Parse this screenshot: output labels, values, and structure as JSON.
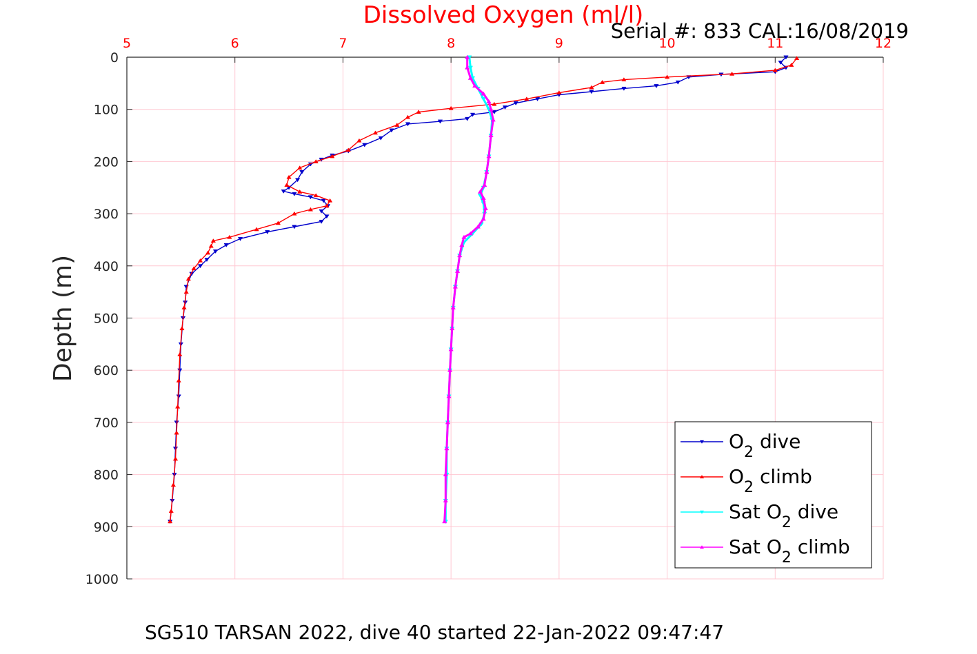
{
  "chart_data": {
    "type": "line",
    "title": "Dissolved Oxygen (ml/l)",
    "subtitle": "Serial #: 833  CAL:16/08/2019",
    "footer": "SG510 TARSAN 2022, dive 40 started 22-Jan-2022 09:47:47",
    "xlabel": "",
    "ylabel": "Depth (m)",
    "xlim": [
      5,
      12
    ],
    "ylim": [
      0,
      1000
    ],
    "y_reversed": true,
    "x_axis_position": "top",
    "xticks": [
      "5",
      "6",
      "7",
      "8",
      "9",
      "10",
      "11",
      "12"
    ],
    "yticks": [
      "0",
      "100",
      "200",
      "300",
      "400",
      "500",
      "600",
      "700",
      "800",
      "900",
      "1000"
    ],
    "grid": true,
    "legend_position": "bottom-right",
    "colors": {
      "title": "#ff0000",
      "xticks": "#ff0000",
      "grid": "#ffc8d2",
      "axis": "#262626"
    },
    "series": [
      {
        "name": "O2 dive",
        "color": "#0000cc",
        "marker": "triangle-down",
        "points": [
          [
            11.1,
            0
          ],
          [
            11.05,
            10
          ],
          [
            11.1,
            20
          ],
          [
            11.0,
            28
          ],
          [
            10.5,
            33
          ],
          [
            10.2,
            38
          ],
          [
            10.1,
            48
          ],
          [
            9.9,
            55
          ],
          [
            9.6,
            60
          ],
          [
            9.3,
            66
          ],
          [
            9.0,
            72
          ],
          [
            8.8,
            80
          ],
          [
            8.6,
            88
          ],
          [
            8.5,
            96
          ],
          [
            8.4,
            105
          ],
          [
            8.2,
            110
          ],
          [
            8.15,
            118
          ],
          [
            7.9,
            123
          ],
          [
            7.6,
            128
          ],
          [
            7.45,
            140
          ],
          [
            7.35,
            155
          ],
          [
            7.2,
            168
          ],
          [
            7.05,
            180
          ],
          [
            6.9,
            188
          ],
          [
            6.8,
            196
          ],
          [
            6.7,
            205
          ],
          [
            6.62,
            220
          ],
          [
            6.58,
            235
          ],
          [
            6.5,
            250
          ],
          [
            6.45,
            257
          ],
          [
            6.55,
            262
          ],
          [
            6.7,
            268
          ],
          [
            6.82,
            275
          ],
          [
            6.86,
            285
          ],
          [
            6.8,
            295
          ],
          [
            6.85,
            305
          ],
          [
            6.8,
            315
          ],
          [
            6.55,
            325
          ],
          [
            6.3,
            335
          ],
          [
            6.05,
            348
          ],
          [
            5.92,
            360
          ],
          [
            5.82,
            372
          ],
          [
            5.74,
            388
          ],
          [
            5.68,
            400
          ],
          [
            5.6,
            415
          ],
          [
            5.55,
            440
          ],
          [
            5.54,
            470
          ],
          [
            5.52,
            500
          ],
          [
            5.5,
            550
          ],
          [
            5.49,
            600
          ],
          [
            5.48,
            650
          ],
          [
            5.46,
            700
          ],
          [
            5.45,
            750
          ],
          [
            5.44,
            800
          ],
          [
            5.42,
            850
          ],
          [
            5.4,
            890
          ]
        ]
      },
      {
        "name": "O2 climb",
        "color": "#ff0000",
        "marker": "triangle-up",
        "points": [
          [
            11.2,
            2
          ],
          [
            11.15,
            15
          ],
          [
            11.0,
            25
          ],
          [
            10.6,
            32
          ],
          [
            10.0,
            38
          ],
          [
            9.6,
            43
          ],
          [
            9.4,
            48
          ],
          [
            9.3,
            58
          ],
          [
            9.0,
            68
          ],
          [
            8.7,
            80
          ],
          [
            8.4,
            90
          ],
          [
            8.0,
            98
          ],
          [
            7.7,
            105
          ],
          [
            7.6,
            115
          ],
          [
            7.5,
            130
          ],
          [
            7.3,
            145
          ],
          [
            7.15,
            160
          ],
          [
            7.05,
            178
          ],
          [
            6.9,
            190
          ],
          [
            6.75,
            200
          ],
          [
            6.6,
            212
          ],
          [
            6.5,
            230
          ],
          [
            6.48,
            245
          ],
          [
            6.6,
            258
          ],
          [
            6.75,
            265
          ],
          [
            6.88,
            275
          ],
          [
            6.85,
            285
          ],
          [
            6.7,
            292
          ],
          [
            6.55,
            300
          ],
          [
            6.4,
            318
          ],
          [
            6.2,
            330
          ],
          [
            5.95,
            345
          ],
          [
            5.8,
            352
          ],
          [
            5.78,
            362
          ],
          [
            5.75,
            375
          ],
          [
            5.68,
            390
          ],
          [
            5.62,
            405
          ],
          [
            5.57,
            425
          ],
          [
            5.55,
            450
          ],
          [
            5.53,
            480
          ],
          [
            5.51,
            520
          ],
          [
            5.49,
            570
          ],
          [
            5.48,
            620
          ],
          [
            5.47,
            670
          ],
          [
            5.46,
            720
          ],
          [
            5.45,
            770
          ],
          [
            5.43,
            820
          ],
          [
            5.41,
            870
          ],
          [
            5.4,
            890
          ]
        ]
      },
      {
        "name": "Sat O2 dive",
        "color": "#00ffff",
        "marker": "triangle-down",
        "points": [
          [
            8.17,
            0
          ],
          [
            8.18,
            20
          ],
          [
            8.2,
            40
          ],
          [
            8.25,
            60
          ],
          [
            8.3,
            80
          ],
          [
            8.35,
            100
          ],
          [
            8.38,
            120
          ],
          [
            8.37,
            150
          ],
          [
            8.35,
            190
          ],
          [
            8.33,
            220
          ],
          [
            8.3,
            250
          ],
          [
            8.27,
            265
          ],
          [
            8.3,
            280
          ],
          [
            8.31,
            300
          ],
          [
            8.28,
            320
          ],
          [
            8.2,
            338
          ],
          [
            8.12,
            355
          ],
          [
            8.08,
            380
          ],
          [
            8.06,
            410
          ],
          [
            8.04,
            440
          ],
          [
            8.02,
            480
          ],
          [
            8.01,
            520
          ],
          [
            8.0,
            560
          ],
          [
            7.99,
            600
          ],
          [
            7.98,
            650
          ],
          [
            7.97,
            700
          ],
          [
            7.96,
            750
          ],
          [
            7.96,
            800
          ],
          [
            7.95,
            850
          ],
          [
            7.95,
            890
          ]
        ]
      },
      {
        "name": "Sat O2 climb",
        "color": "#ff00ff",
        "marker": "triangle-up",
        "points": [
          [
            8.15,
            0
          ],
          [
            8.15,
            20
          ],
          [
            8.18,
            40
          ],
          [
            8.22,
            55
          ],
          [
            8.3,
            70
          ],
          [
            8.35,
            85
          ],
          [
            8.37,
            100
          ],
          [
            8.39,
            120
          ],
          [
            8.37,
            150
          ],
          [
            8.35,
            190
          ],
          [
            8.33,
            220
          ],
          [
            8.31,
            245
          ],
          [
            8.27,
            258
          ],
          [
            8.3,
            270
          ],
          [
            8.32,
            290
          ],
          [
            8.3,
            310
          ],
          [
            8.25,
            325
          ],
          [
            8.18,
            338
          ],
          [
            8.12,
            345
          ],
          [
            8.1,
            360
          ],
          [
            8.08,
            380
          ],
          [
            8.06,
            410
          ],
          [
            8.04,
            440
          ],
          [
            8.02,
            480
          ],
          [
            8.01,
            520
          ],
          [
            8.0,
            560
          ],
          [
            7.99,
            600
          ],
          [
            7.98,
            650
          ],
          [
            7.97,
            700
          ],
          [
            7.96,
            750
          ],
          [
            7.95,
            800
          ],
          [
            7.95,
            850
          ],
          [
            7.94,
            890
          ]
        ]
      }
    ]
  }
}
